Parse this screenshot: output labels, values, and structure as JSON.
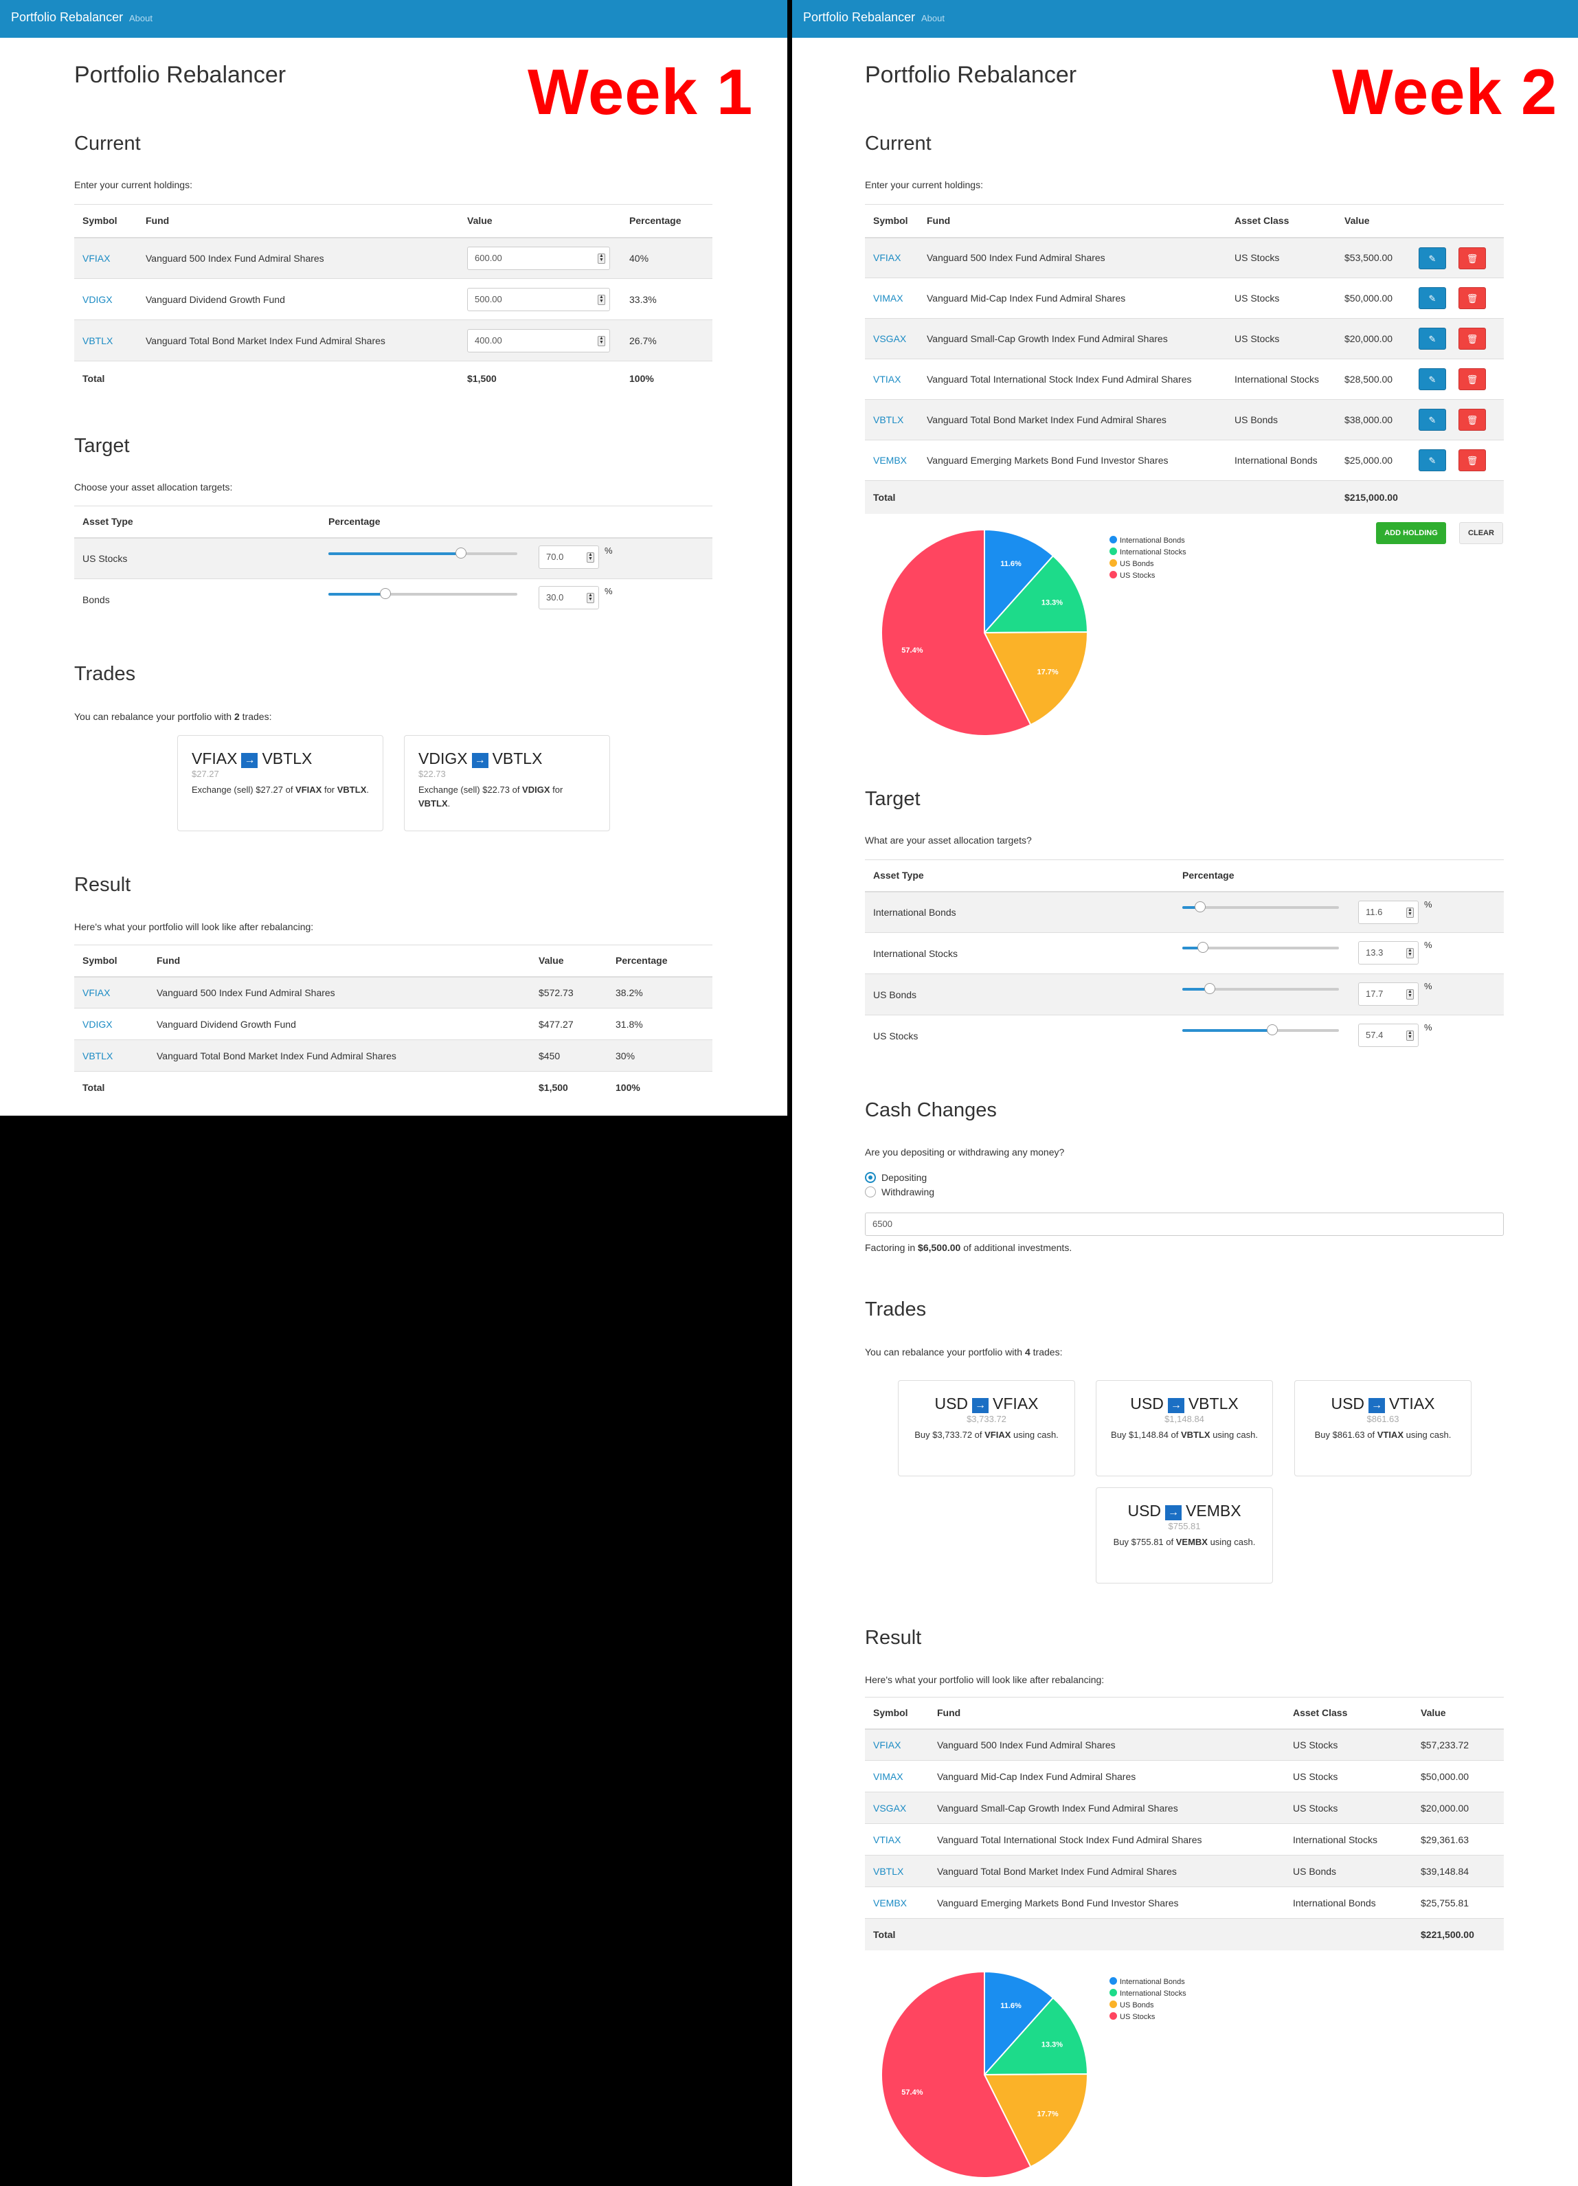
{
  "app": {
    "brand": "Portfolio Rebalancer",
    "about": "About",
    "title": "Portfolio Rebalancer"
  },
  "week1": {
    "label": "Week 1",
    "current": {
      "heading": "Current",
      "intro": "Enter your current holdings:",
      "headers": [
        "Symbol",
        "Fund",
        "Value",
        "Percentage"
      ],
      "rows": [
        {
          "symbol": "VFIAX",
          "fund": "Vanguard 500 Index Fund Admiral Shares",
          "value": "600.00",
          "pct": "40%"
        },
        {
          "symbol": "VDIGX",
          "fund": "Vanguard Dividend Growth Fund",
          "value": "500.00",
          "pct": "33.3%"
        },
        {
          "symbol": "VBTLX",
          "fund": "Vanguard Total Bond Market Index Fund Admiral Shares",
          "value": "400.00",
          "pct": "26.7%"
        }
      ],
      "total": {
        "label": "Total",
        "value": "$1,500",
        "pct": "100%"
      }
    },
    "target": {
      "heading": "Target",
      "intro": "Choose your asset allocation targets:",
      "headers": [
        "Asset Type",
        "Percentage"
      ],
      "rows": [
        {
          "type": "US Stocks",
          "value": "70.0",
          "level": 0.7
        },
        {
          "type": "Bonds",
          "value": "30.0",
          "level": 0.3
        }
      ],
      "pct_sign": "%"
    },
    "trades": {
      "heading": "Trades",
      "intro_pre": "You can rebalance your portfolio with ",
      "count": "2",
      "intro_post": " trades:",
      "cards": [
        {
          "from": "VFIAX",
          "to": "VBTLX",
          "amount": "$27.27",
          "desc_pre": "Exchange (sell) $27.27 of ",
          "desc_b1": "VFIAX",
          "desc_mid": " for ",
          "desc_b2": "VBTLX",
          "desc_post": "."
        },
        {
          "from": "VDIGX",
          "to": "VBTLX",
          "amount": "$22.73",
          "desc_pre": "Exchange (sell) $22.73 of ",
          "desc_b1": "VDIGX",
          "desc_mid": " for ",
          "desc_b2": "VBTLX",
          "desc_post": "."
        }
      ]
    },
    "result": {
      "heading": "Result",
      "intro": "Here's what your portfolio will look like after rebalancing:",
      "headers": [
        "Symbol",
        "Fund",
        "Value",
        "Percentage"
      ],
      "rows": [
        {
          "symbol": "VFIAX",
          "fund": "Vanguard 500 Index Fund Admiral Shares",
          "value": "$572.73",
          "pct": "38.2%"
        },
        {
          "symbol": "VDIGX",
          "fund": "Vanguard Dividend Growth Fund",
          "value": "$477.27",
          "pct": "31.8%"
        },
        {
          "symbol": "VBTLX",
          "fund": "Vanguard Total Bond Market Index Fund Admiral Shares",
          "value": "$450",
          "pct": "30%"
        }
      ],
      "total": {
        "label": "Total",
        "value": "$1,500",
        "pct": "100%"
      }
    }
  },
  "week2": {
    "label": "Week 2",
    "current": {
      "heading": "Current",
      "intro": "Enter your current holdings:",
      "headers": [
        "Symbol",
        "Fund",
        "Asset Class",
        "Value"
      ],
      "rows": [
        {
          "symbol": "VFIAX",
          "fund": "Vanguard 500 Index Fund Admiral Shares",
          "class": "US Stocks",
          "value": "$53,500.00"
        },
        {
          "symbol": "VIMAX",
          "fund": "Vanguard Mid-Cap Index Fund Admiral Shares",
          "class": "US Stocks",
          "value": "$50,000.00"
        },
        {
          "symbol": "VSGAX",
          "fund": "Vanguard Small-Cap Growth Index Fund Admiral Shares",
          "class": "US Stocks",
          "value": "$20,000.00"
        },
        {
          "symbol": "VTIAX",
          "fund": "Vanguard Total International Stock Index Fund Admiral Shares",
          "class": "International Stocks",
          "value": "$28,500.00"
        },
        {
          "symbol": "VBTLX",
          "fund": "Vanguard Total Bond Market Index Fund Admiral Shares",
          "class": "US Bonds",
          "value": "$38,000.00"
        },
        {
          "symbol": "VEMBX",
          "fund": "Vanguard Emerging Markets Bond Fund Investor Shares",
          "class": "International Bonds",
          "value": "$25,000.00"
        }
      ],
      "total": {
        "label": "Total",
        "value": "$215,000.00"
      },
      "add_button": "ADD HOLDING",
      "clear_button": "CLEAR",
      "edit_icon": "pencil-icon",
      "delete_icon": "trash-icon"
    },
    "target": {
      "heading": "Target",
      "intro": "What are your asset allocation targets?",
      "headers": [
        "Asset Type",
        "Percentage"
      ],
      "rows": [
        {
          "type": "International Bonds",
          "value": "11.6",
          "level": 0.116
        },
        {
          "type": "International Stocks",
          "value": "13.3",
          "level": 0.133
        },
        {
          "type": "US Bonds",
          "value": "17.7",
          "level": 0.177
        },
        {
          "type": "US Stocks",
          "value": "57.4",
          "level": 0.574
        }
      ],
      "pct_sign": "%"
    },
    "cash": {
      "heading": "Cash Changes",
      "intro": "Are you depositing or withdrawing any money?",
      "options": [
        "Depositing",
        "Withdrawing"
      ],
      "selected": "Depositing",
      "amount": "6500",
      "factor_pre": "Factoring in ",
      "factor_amount": "$6,500.00",
      "factor_post": " of additional investments."
    },
    "trades": {
      "heading": "Trades",
      "intro_pre": "You can rebalance your portfolio with ",
      "count": "4",
      "intro_post": " trades:",
      "cards": [
        {
          "from": "USD",
          "to": "VFIAX",
          "amount": "$3,733.72",
          "desc_pre": "Buy $3,733.72 of ",
          "desc_b": "VFIAX",
          "desc_post": " using cash."
        },
        {
          "from": "USD",
          "to": "VBTLX",
          "amount": "$1,148.84",
          "desc_pre": "Buy $1,148.84 of ",
          "desc_b": "VBTLX",
          "desc_post": " using cash."
        },
        {
          "from": "USD",
          "to": "VTIAX",
          "amount": "$861.63",
          "desc_pre": "Buy $861.63 of ",
          "desc_b": "VTIAX",
          "desc_post": " using cash."
        },
        {
          "from": "USD",
          "to": "VEMBX",
          "amount": "$755.81",
          "desc_pre": "Buy $755.81 of ",
          "desc_b": "VEMBX",
          "desc_post": " using cash."
        }
      ]
    },
    "result": {
      "heading": "Result",
      "intro": "Here's what your portfolio will look like after rebalancing:",
      "headers": [
        "Symbol",
        "Fund",
        "Asset Class",
        "Value"
      ],
      "rows": [
        {
          "symbol": "VFIAX",
          "fund": "Vanguard 500 Index Fund Admiral Shares",
          "class": "US Stocks",
          "value": "$57,233.72"
        },
        {
          "symbol": "VIMAX",
          "fund": "Vanguard Mid-Cap Index Fund Admiral Shares",
          "class": "US Stocks",
          "value": "$50,000.00"
        },
        {
          "symbol": "VSGAX",
          "fund": "Vanguard Small-Cap Growth Index Fund Admiral Shares",
          "class": "US Stocks",
          "value": "$20,000.00"
        },
        {
          "symbol": "VTIAX",
          "fund": "Vanguard Total International Stock Index Fund Admiral Shares",
          "class": "International Stocks",
          "value": "$29,361.63"
        },
        {
          "symbol": "VBTLX",
          "fund": "Vanguard Total Bond Market Index Fund Admiral Shares",
          "class": "US Bonds",
          "value": "$39,148.84"
        },
        {
          "symbol": "VEMBX",
          "fund": "Vanguard Emerging Markets Bond Fund Investor Shares",
          "class": "International Bonds",
          "value": "$25,755.81"
        }
      ],
      "total": {
        "label": "Total",
        "value": "$221,500.00"
      }
    }
  },
  "colors": {
    "navbar": "#1b8bc4",
    "link": "#1b8bc4",
    "week_label": "#ff0000",
    "add": "#2fae2f",
    "delete": "#f0433f"
  },
  "chart_data": [
    {
      "type": "pie",
      "categories": [
        "International Bonds",
        "International Stocks",
        "US Bonds",
        "US Stocks"
      ],
      "values": [
        11.6,
        13.3,
        17.7,
        57.4
      ],
      "labels": [
        "11.6%",
        "13.3%",
        "17.7%",
        "57.4%"
      ],
      "colors": [
        "#1a8ef0",
        "#1ddb8a",
        "#fbb228",
        "#ff4560"
      ],
      "legend": "top-right"
    },
    {
      "type": "pie",
      "categories": [
        "International Bonds",
        "International Stocks",
        "US Bonds",
        "US Stocks"
      ],
      "values": [
        11.6,
        13.3,
        17.7,
        57.4
      ],
      "labels": [
        "11.6%",
        "13.3%",
        "17.7%",
        "57.4%"
      ],
      "colors": [
        "#1a8ef0",
        "#1ddb8a",
        "#fbb228",
        "#ff4560"
      ],
      "legend": "top-right"
    }
  ]
}
